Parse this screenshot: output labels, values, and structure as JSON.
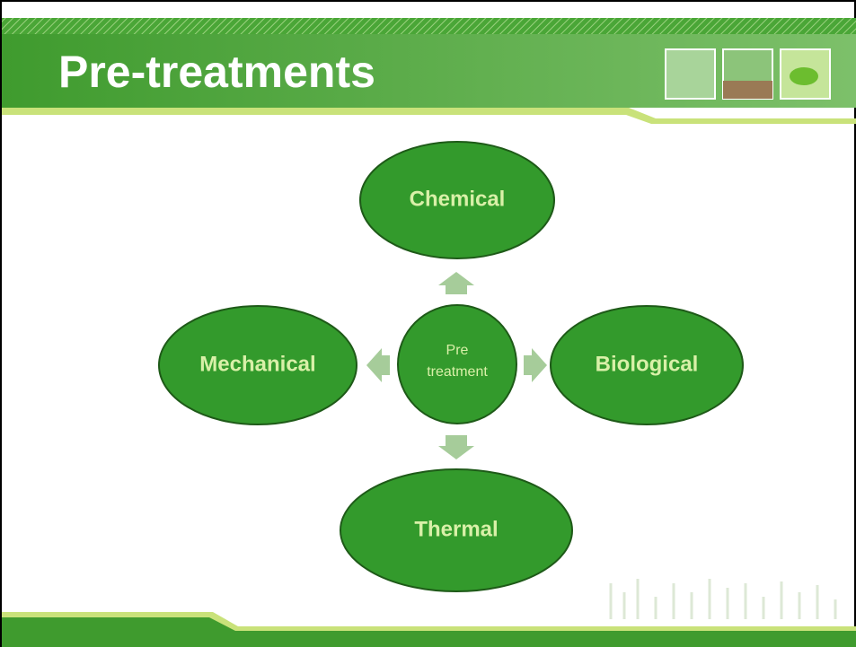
{
  "header": {
    "title": "Pre-treatments"
  },
  "center": {
    "label": "Pre treatment"
  },
  "nodes": [
    {
      "label": "Chemical"
    },
    {
      "label": "Biological"
    },
    {
      "label": "Thermal"
    },
    {
      "label": "Mechanical"
    }
  ]
}
